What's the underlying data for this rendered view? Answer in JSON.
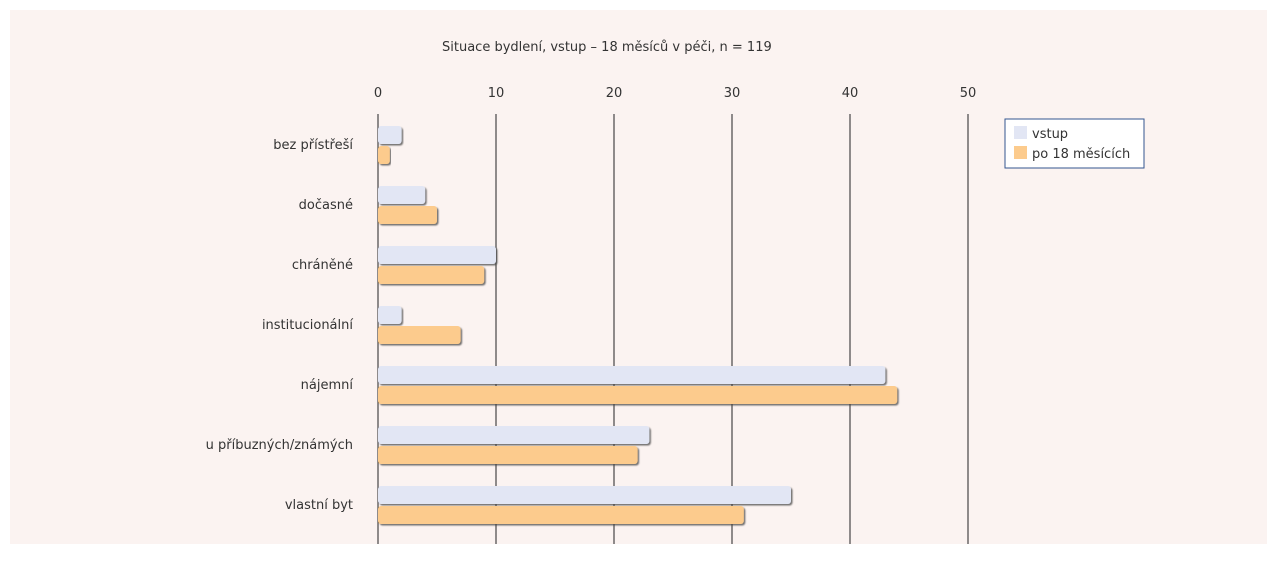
{
  "chart_data": {
    "type": "bar",
    "orientation": "horizontal",
    "title": "Situace bydlení, vstup – 18 měsíců v péči, n = 119",
    "xlabel": "",
    "ylabel": "",
    "xlim": [
      0,
      50
    ],
    "x_ticks": [
      "0",
      "10",
      "20",
      "30",
      "40",
      "50"
    ],
    "grid": "vertical",
    "legend_position": "top-right",
    "categories": [
      "bez přístřeší",
      "dočasné",
      "chráněné",
      "institucionální",
      "nájemní",
      "u příbuzných/známých",
      "vlastní byt"
    ],
    "series": [
      {
        "name": "vstup",
        "color": "#e2e6f4",
        "values": [
          2,
          4,
          10,
          2,
          43,
          23,
          35
        ]
      },
      {
        "name": "po 18 měsících",
        "color": "#fccb8d",
        "values": [
          1,
          5,
          9,
          7,
          44,
          22,
          31
        ]
      }
    ]
  },
  "colors": {
    "background": "#fbf3f1",
    "axis": "#222222",
    "text": "#333333",
    "legend_border": "#33558f"
  }
}
